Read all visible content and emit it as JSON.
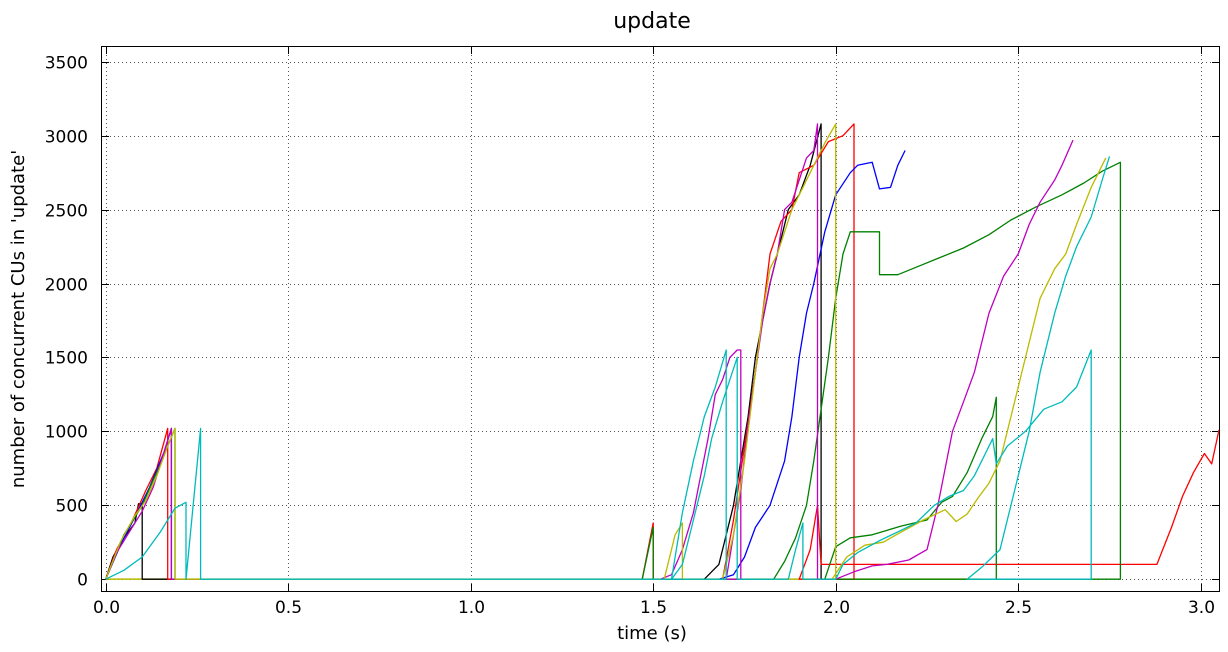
{
  "chart_data": {
    "type": "line",
    "title": "update",
    "xlabel": "time (s)",
    "ylabel": "number of concurrent CUs in 'update'",
    "xlim": [
      -0.01,
      3.05
    ],
    "ylim": [
      -80,
      3600
    ],
    "xticks": [
      0.0,
      0.5,
      1.0,
      1.5,
      2.0,
      2.5,
      3.0
    ],
    "xtick_labels": [
      "0.0",
      "0.5",
      "1.0",
      "1.5",
      "2.0",
      "2.5",
      "3.0"
    ],
    "yticks": [
      0,
      500,
      1000,
      1500,
      2000,
      2500,
      3000,
      3500
    ],
    "ytick_labels": [
      "0",
      "500",
      "1000",
      "1500",
      "2000",
      "2500",
      "3000",
      "3500"
    ],
    "grid": true,
    "grid_style": "dotted",
    "baseline_y": 0,
    "series": [
      {
        "color": "#000000",
        "points": [
          [
            0.0,
            0
          ],
          [
            0.02,
            150
          ],
          [
            0.05,
            280
          ],
          [
            0.08,
            380
          ],
          [
            0.09,
            510
          ],
          [
            0.1,
            510
          ],
          [
            0.1,
            0
          ],
          [
            1.64,
            0
          ],
          [
            1.68,
            100
          ],
          [
            1.72,
            500
          ],
          [
            1.76,
            1100
          ],
          [
            1.78,
            1500
          ],
          [
            1.82,
            2000
          ],
          [
            1.85,
            2300
          ],
          [
            1.87,
            2500
          ],
          [
            1.9,
            2600
          ],
          [
            1.93,
            2800
          ],
          [
            1.96,
            3080
          ],
          [
            1.96,
            0
          ]
        ]
      },
      {
        "color": "#ff0000",
        "points": [
          [
            0.0,
            0
          ],
          [
            0.03,
            200
          ],
          [
            0.07,
            380
          ],
          [
            0.11,
            600
          ],
          [
            0.14,
            750
          ],
          [
            0.17,
            1020
          ],
          [
            0.17,
            0
          ],
          [
            1.47,
            0
          ],
          [
            1.5,
            380
          ],
          [
            1.5,
            0
          ],
          [
            1.69,
            0
          ],
          [
            1.72,
            400
          ],
          [
            1.75,
            900
          ],
          [
            1.78,
            1400
          ],
          [
            1.8,
            1800
          ],
          [
            1.82,
            2200
          ],
          [
            1.85,
            2420
          ],
          [
            1.88,
            2500
          ],
          [
            1.9,
            2750
          ],
          [
            1.94,
            2800
          ],
          [
            1.98,
            2960
          ],
          [
            2.02,
            3000
          ],
          [
            2.05,
            3080
          ],
          [
            2.05,
            0
          ],
          [
            1.9,
            0
          ],
          [
            1.93,
            200
          ],
          [
            1.95,
            500
          ],
          [
            1.96,
            100
          ],
          [
            2.88,
            100
          ],
          [
            2.92,
            350
          ],
          [
            2.95,
            560
          ],
          [
            2.98,
            720
          ],
          [
            3.01,
            850
          ],
          [
            3.03,
            780
          ],
          [
            3.05,
            1010
          ]
        ]
      },
      {
        "color": "#0000ff",
        "points": [
          [
            0.0,
            0
          ],
          [
            0.04,
            230
          ],
          [
            0.08,
            420
          ],
          [
            0.12,
            620
          ],
          [
            0.16,
            860
          ],
          [
            0.18,
            1020
          ],
          [
            0.18,
            0
          ],
          [
            1.68,
            0
          ],
          [
            1.72,
            30
          ],
          [
            1.75,
            150
          ],
          [
            1.78,
            350
          ],
          [
            1.82,
            500
          ],
          [
            1.86,
            800
          ],
          [
            1.88,
            1100
          ],
          [
            1.9,
            1500
          ],
          [
            1.92,
            1800
          ],
          [
            1.94,
            2000
          ],
          [
            1.97,
            2350
          ],
          [
            2.0,
            2600
          ],
          [
            2.04,
            2750
          ],
          [
            2.06,
            2800
          ],
          [
            2.1,
            2820
          ],
          [
            2.12,
            2640
          ],
          [
            2.15,
            2650
          ],
          [
            2.17,
            2800
          ],
          [
            2.19,
            2900
          ]
        ]
      },
      {
        "color": "#008000",
        "points": [
          [
            0.0,
            0
          ],
          [
            0.05,
            300
          ],
          [
            0.1,
            500
          ],
          [
            0.15,
            780
          ],
          [
            0.19,
            1020
          ],
          [
            0.19,
            0
          ],
          [
            1.47,
            0
          ],
          [
            1.5,
            350
          ],
          [
            1.5,
            0
          ],
          [
            1.83,
            0
          ],
          [
            1.86,
            120
          ],
          [
            1.89,
            280
          ],
          [
            1.92,
            500
          ],
          [
            1.94,
            800
          ],
          [
            1.96,
            1150
          ],
          [
            1.98,
            1500
          ],
          [
            2.0,
            1900
          ],
          [
            2.02,
            2200
          ],
          [
            2.04,
            2350
          ],
          [
            2.12,
            2350
          ],
          [
            2.12,
            2060
          ],
          [
            2.17,
            2060
          ],
          [
            2.22,
            2110
          ],
          [
            2.28,
            2170
          ],
          [
            2.35,
            2240
          ],
          [
            2.42,
            2330
          ],
          [
            2.48,
            2430
          ],
          [
            2.55,
            2520
          ],
          [
            2.62,
            2600
          ],
          [
            2.68,
            2680
          ],
          [
            2.73,
            2760
          ],
          [
            2.78,
            2820
          ],
          [
            2.78,
            0
          ],
          [
            1.97,
            0
          ],
          [
            2.0,
            220
          ],
          [
            2.04,
            280
          ],
          [
            2.1,
            300
          ],
          [
            2.18,
            360
          ],
          [
            2.25,
            400
          ],
          [
            2.29,
            520
          ],
          [
            2.32,
            560
          ],
          [
            2.36,
            720
          ],
          [
            2.4,
            950
          ],
          [
            2.43,
            1100
          ],
          [
            2.44,
            1230
          ],
          [
            2.44,
            0
          ]
        ]
      },
      {
        "color": "#c000c0",
        "points": [
          [
            0.0,
            0
          ],
          [
            0.03,
            180
          ],
          [
            0.06,
            300
          ],
          [
            0.1,
            460
          ],
          [
            0.13,
            620
          ],
          [
            0.16,
            860
          ],
          [
            0.18,
            1020
          ],
          [
            0.18,
            0
          ],
          [
            1.52,
            0
          ],
          [
            1.55,
            30
          ],
          [
            1.58,
            200
          ],
          [
            1.61,
            450
          ],
          [
            1.63,
            700
          ],
          [
            1.65,
            950
          ],
          [
            1.67,
            1250
          ],
          [
            1.69,
            1350
          ],
          [
            1.71,
            1500
          ],
          [
            1.73,
            1550
          ],
          [
            1.74,
            1550
          ],
          [
            1.74,
            0
          ],
          [
            1.7,
            0
          ],
          [
            1.74,
            600
          ],
          [
            1.76,
            1050
          ],
          [
            1.78,
            1400
          ],
          [
            1.8,
            1750
          ],
          [
            1.82,
            2000
          ],
          [
            1.84,
            2200
          ],
          [
            1.86,
            2500
          ],
          [
            1.88,
            2550
          ],
          [
            1.9,
            2700
          ],
          [
            1.92,
            2850
          ],
          [
            1.94,
            2900
          ],
          [
            1.95,
            3080
          ],
          [
            1.95,
            0
          ],
          [
            2.0,
            0
          ],
          [
            2.05,
            50
          ],
          [
            2.1,
            90
          ],
          [
            2.14,
            100
          ],
          [
            2.2,
            130
          ],
          [
            2.25,
            200
          ],
          [
            2.28,
            500
          ],
          [
            2.32,
            1000
          ],
          [
            2.35,
            1200
          ],
          [
            2.38,
            1400
          ],
          [
            2.42,
            1800
          ],
          [
            2.46,
            2050
          ],
          [
            2.5,
            2200
          ],
          [
            2.53,
            2400
          ],
          [
            2.56,
            2550
          ],
          [
            2.6,
            2700
          ],
          [
            2.62,
            2800
          ],
          [
            2.65,
            2970
          ]
        ]
      },
      {
        "color": "#bbbb00",
        "points": [
          [
            0.0,
            0
          ],
          [
            0.04,
            250
          ],
          [
            0.08,
            430
          ],
          [
            0.11,
            530
          ],
          [
            0.14,
            700
          ],
          [
            0.17,
            900
          ],
          [
            0.19,
            1020
          ],
          [
            0.19,
            0
          ],
          [
            1.53,
            0
          ],
          [
            1.56,
            300
          ],
          [
            1.58,
            380
          ],
          [
            1.58,
            0
          ],
          [
            1.69,
            0
          ],
          [
            1.72,
            300
          ],
          [
            1.75,
            800
          ],
          [
            1.78,
            1400
          ],
          [
            1.8,
            1800
          ],
          [
            1.82,
            2100
          ],
          [
            1.84,
            2200
          ],
          [
            1.86,
            2350
          ],
          [
            1.88,
            2500
          ],
          [
            1.91,
            2650
          ],
          [
            1.94,
            2800
          ],
          [
            1.97,
            2950
          ],
          [
            2.0,
            3080
          ],
          [
            2.0,
            0
          ],
          [
            1.99,
            0
          ],
          [
            2.03,
            150
          ],
          [
            2.08,
            230
          ],
          [
            2.13,
            250
          ],
          [
            2.18,
            320
          ],
          [
            2.24,
            400
          ],
          [
            2.3,
            470
          ],
          [
            2.33,
            390
          ],
          [
            2.36,
            440
          ],
          [
            2.39,
            550
          ],
          [
            2.42,
            650
          ],
          [
            2.45,
            800
          ],
          [
            2.49,
            1200
          ],
          [
            2.52,
            1500
          ],
          [
            2.56,
            1900
          ],
          [
            2.6,
            2100
          ],
          [
            2.63,
            2200
          ],
          [
            2.66,
            2400
          ],
          [
            2.7,
            2650
          ],
          [
            2.74,
            2850
          ]
        ]
      },
      {
        "color": "#00bbbb",
        "points": [
          [
            0.0,
            0
          ],
          [
            0.05,
            60
          ],
          [
            0.1,
            150
          ],
          [
            0.15,
            320
          ],
          [
            0.19,
            480
          ],
          [
            0.22,
            520
          ],
          [
            0.22,
            0
          ],
          [
            0.22,
            0
          ],
          [
            0.26,
            1020
          ],
          [
            0.26,
            0
          ],
          [
            1.55,
            0
          ],
          [
            1.58,
            450
          ],
          [
            1.61,
            800
          ],
          [
            1.64,
            1100
          ],
          [
            1.67,
            1300
          ],
          [
            1.7,
            1550
          ],
          [
            1.7,
            0
          ],
          [
            1.55,
            0
          ],
          [
            1.58,
            100
          ],
          [
            1.61,
            400
          ],
          [
            1.64,
            700
          ],
          [
            1.66,
            950
          ],
          [
            1.69,
            1200
          ],
          [
            1.71,
            1350
          ],
          [
            1.73,
            1500
          ],
          [
            1.73,
            0
          ],
          [
            1.87,
            0
          ],
          [
            1.89,
            200
          ],
          [
            1.91,
            380
          ],
          [
            1.91,
            0
          ],
          [
            2.0,
            0
          ],
          [
            2.02,
            100
          ],
          [
            2.06,
            180
          ],
          [
            2.12,
            260
          ],
          [
            2.17,
            320
          ],
          [
            2.22,
            380
          ],
          [
            2.27,
            500
          ],
          [
            2.31,
            560
          ],
          [
            2.35,
            600
          ],
          [
            2.38,
            700
          ],
          [
            2.41,
            850
          ],
          [
            2.43,
            950
          ],
          [
            2.44,
            780
          ],
          [
            2.47,
            900
          ],
          [
            2.52,
            1000
          ],
          [
            2.57,
            1150
          ],
          [
            2.62,
            1200
          ],
          [
            2.66,
            1300
          ],
          [
            2.7,
            1550
          ],
          [
            2.7,
            0
          ],
          [
            2.36,
            0
          ],
          [
            2.4,
            80
          ],
          [
            2.45,
            200
          ],
          [
            2.49,
            600
          ],
          [
            2.53,
            1000
          ],
          [
            2.56,
            1400
          ],
          [
            2.6,
            1800
          ],
          [
            2.63,
            2050
          ],
          [
            2.66,
            2250
          ],
          [
            2.7,
            2450
          ],
          [
            2.73,
            2700
          ],
          [
            2.75,
            2860
          ]
        ]
      }
    ]
  }
}
